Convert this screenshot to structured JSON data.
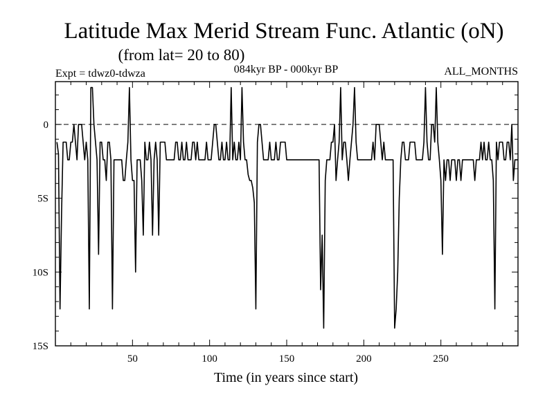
{
  "chart_data": {
    "type": "line",
    "title": "Latitude Max Merid Stream Func. Atlantic (oN)",
    "subtitle": "(from lat= 20 to 80)",
    "header_left": "Expt = tdwz0-tdwza",
    "header_center": "084kyr BP - 000kyr BP",
    "header_right": "ALL_MONTHS",
    "xlabel": "Time (in years since start)",
    "ylabel": "",
    "xlim": [
      0,
      300
    ],
    "ylim": [
      -15,
      2.9
    ],
    "x_ticks": [
      50,
      100,
      150,
      200,
      250
    ],
    "x_tick_labels": [
      "50",
      "100",
      "150",
      "200",
      "250"
    ],
    "y_ticks": [
      0,
      -5,
      -10,
      -15
    ],
    "y_tick_labels": [
      "0",
      "5S",
      "10S",
      "15S"
    ],
    "zero_line": "dashed",
    "grid": false,
    "series": [
      {
        "values": [
          [
            1,
            -1.2
          ],
          [
            2,
            -2.0
          ],
          [
            3,
            -12.5
          ],
          [
            4,
            -6.0
          ],
          [
            5,
            -1.2
          ],
          [
            6,
            -1.2
          ],
          [
            7,
            -1.2
          ],
          [
            8,
            -2.4
          ],
          [
            9,
            -2.4
          ],
          [
            10,
            -1.2
          ],
          [
            11,
            -1.2
          ],
          [
            12,
            0.0
          ],
          [
            13,
            -1.2
          ],
          [
            14,
            -2.4
          ],
          [
            15,
            0.0
          ],
          [
            16,
            0.0
          ],
          [
            17,
            0.0
          ],
          [
            18,
            -1.2
          ],
          [
            19,
            -2.4
          ],
          [
            20,
            -1.2
          ],
          [
            21,
            -2.4
          ],
          [
            22,
            -12.5
          ],
          [
            23,
            2.5
          ],
          [
            24,
            2.5
          ],
          [
            25,
            0.0
          ],
          [
            26,
            -1.2
          ],
          [
            27,
            -2.4
          ],
          [
            28,
            -8.8
          ],
          [
            29,
            -1.2
          ],
          [
            30,
            -1.2
          ],
          [
            31,
            -2.4
          ],
          [
            32,
            -2.4
          ],
          [
            33,
            -3.8
          ],
          [
            34,
            -1.2
          ],
          [
            35,
            -1.2
          ],
          [
            36,
            -2.4
          ],
          [
            37,
            -12.5
          ],
          [
            38,
            -2.4
          ],
          [
            39,
            -2.4
          ],
          [
            40,
            -2.4
          ],
          [
            41,
            -2.4
          ],
          [
            42,
            -2.4
          ],
          [
            43,
            -2.4
          ],
          [
            44,
            -3.8
          ],
          [
            45,
            -3.8
          ],
          [
            46,
            -2.4
          ],
          [
            47,
            -1.2
          ],
          [
            48,
            2.5
          ],
          [
            49,
            -2.4
          ],
          [
            50,
            -3.8
          ],
          [
            51,
            -3.8
          ],
          [
            52,
            -10.0
          ],
          [
            53,
            -2.4
          ],
          [
            54,
            -2.4
          ],
          [
            55,
            -2.4
          ],
          [
            56,
            -3.8
          ],
          [
            57,
            -7.5
          ],
          [
            58,
            -1.2
          ],
          [
            59,
            -2.4
          ],
          [
            60,
            -2.4
          ],
          [
            61,
            -1.2
          ],
          [
            62,
            -2.4
          ],
          [
            63,
            -7.5
          ],
          [
            64,
            -2.4
          ],
          [
            65,
            -1.2
          ],
          [
            66,
            -2.4
          ],
          [
            67,
            -7.5
          ],
          [
            68,
            -1.2
          ],
          [
            69,
            -1.2
          ],
          [
            70,
            -1.2
          ],
          [
            71,
            -1.2
          ],
          [
            72,
            -2.4
          ],
          [
            73,
            -2.4
          ],
          [
            74,
            -2.4
          ],
          [
            75,
            -2.4
          ],
          [
            76,
            -2.4
          ],
          [
            77,
            -2.4
          ],
          [
            78,
            -1.2
          ],
          [
            79,
            -1.2
          ],
          [
            80,
            -2.4
          ],
          [
            81,
            -2.4
          ],
          [
            82,
            -1.2
          ],
          [
            83,
            -2.4
          ],
          [
            84,
            -2.4
          ],
          [
            85,
            -1.2
          ],
          [
            86,
            -2.4
          ],
          [
            87,
            -2.4
          ],
          [
            88,
            -2.4
          ],
          [
            89,
            -1.2
          ],
          [
            90,
            -1.2
          ],
          [
            91,
            -2.4
          ],
          [
            92,
            -1.2
          ],
          [
            93,
            -2.4
          ],
          [
            94,
            -2.4
          ],
          [
            95,
            -2.4
          ],
          [
            96,
            -2.4
          ],
          [
            97,
            -2.4
          ],
          [
            98,
            -1.2
          ],
          [
            99,
            -2.4
          ],
          [
            100,
            -2.4
          ],
          [
            101,
            -2.4
          ],
          [
            102,
            -1.2
          ],
          [
            103,
            0.0
          ],
          [
            104,
            0.0
          ],
          [
            105,
            -1.2
          ],
          [
            106,
            -2.4
          ],
          [
            107,
            -2.4
          ],
          [
            108,
            -1.2
          ],
          [
            109,
            -2.4
          ],
          [
            110,
            -2.4
          ],
          [
            111,
            -1.2
          ],
          [
            112,
            -2.4
          ],
          [
            113,
            -2.4
          ],
          [
            114,
            2.5
          ],
          [
            115,
            -2.4
          ],
          [
            116,
            -1.2
          ],
          [
            117,
            -2.4
          ],
          [
            118,
            -2.4
          ],
          [
            119,
            -1.2
          ],
          [
            120,
            -2.4
          ],
          [
            121,
            2.5
          ],
          [
            122,
            -1.2
          ],
          [
            123,
            -2.4
          ],
          [
            124,
            -2.4
          ],
          [
            125,
            -3.4
          ],
          [
            126,
            -3.8
          ],
          [
            127,
            -3.8
          ],
          [
            128,
            -4.3
          ],
          [
            129,
            -5.3
          ],
          [
            130,
            -12.5
          ],
          [
            131,
            -1.2
          ],
          [
            132,
            0.0
          ],
          [
            133,
            0.0
          ],
          [
            134,
            -1.2
          ],
          [
            135,
            -2.4
          ],
          [
            136,
            -2.4
          ],
          [
            137,
            -2.4
          ],
          [
            138,
            -2.4
          ],
          [
            139,
            -1.2
          ],
          [
            140,
            -2.4
          ],
          [
            141,
            -2.4
          ],
          [
            142,
            -2.4
          ],
          [
            143,
            -1.2
          ],
          [
            144,
            -2.4
          ],
          [
            145,
            -2.4
          ],
          [
            146,
            -1.2
          ],
          [
            147,
            -1.2
          ],
          [
            148,
            -1.2
          ],
          [
            149,
            -1.2
          ],
          [
            150,
            -2.4
          ],
          [
            151,
            -2.4
          ],
          [
            152,
            -2.4
          ],
          [
            153,
            -2.4
          ],
          [
            154,
            -2.4
          ],
          [
            155,
            -2.4
          ],
          [
            156,
            -2.4
          ],
          [
            157,
            -2.4
          ],
          [
            158,
            -2.4
          ],
          [
            159,
            -2.4
          ],
          [
            160,
            -2.4
          ],
          [
            161,
            -2.4
          ],
          [
            162,
            -2.4
          ],
          [
            163,
            -2.4
          ],
          [
            164,
            -2.4
          ],
          [
            165,
            -2.4
          ],
          [
            166,
            -2.4
          ],
          [
            167,
            -2.4
          ],
          [
            168,
            -2.4
          ],
          [
            169,
            -2.4
          ],
          [
            170,
            -2.4
          ],
          [
            171,
            -2.4
          ],
          [
            172,
            -11.2
          ],
          [
            173,
            -7.5
          ],
          [
            174,
            -13.8
          ],
          [
            175,
            -3.8
          ],
          [
            176,
            -2.4
          ],
          [
            177,
            -2.4
          ],
          [
            178,
            -2.4
          ],
          [
            179,
            -1.2
          ],
          [
            180,
            -1.2
          ],
          [
            181,
            0.0
          ],
          [
            182,
            -3.8
          ],
          [
            183,
            -2.4
          ],
          [
            184,
            -1.2
          ],
          [
            185,
            2.5
          ],
          [
            186,
            -2.4
          ],
          [
            187,
            -1.2
          ],
          [
            188,
            -1.2
          ],
          [
            189,
            -2.4
          ],
          [
            190,
            -3.8
          ],
          [
            191,
            -2.4
          ],
          [
            192,
            -1.2
          ],
          [
            193,
            0.0
          ],
          [
            194,
            2.5
          ],
          [
            195,
            -1.2
          ],
          [
            196,
            -2.4
          ],
          [
            197,
            -2.4
          ],
          [
            198,
            -2.4
          ],
          [
            199,
            -2.4
          ],
          [
            200,
            -2.4
          ],
          [
            201,
            -2.4
          ],
          [
            202,
            -2.4
          ],
          [
            203,
            -2.4
          ],
          [
            204,
            -2.4
          ],
          [
            205,
            -2.4
          ],
          [
            206,
            -1.2
          ],
          [
            207,
            -2.4
          ],
          [
            208,
            0.0
          ],
          [
            209,
            0.0
          ],
          [
            210,
            0.0
          ],
          [
            211,
            -1.2
          ],
          [
            212,
            -2.4
          ],
          [
            213,
            -1.2
          ],
          [
            214,
            -2.4
          ],
          [
            215,
            -2.4
          ],
          [
            216,
            -2.4
          ],
          [
            217,
            -2.4
          ],
          [
            218,
            -2.4
          ],
          [
            219,
            -2.4
          ],
          [
            220,
            -13.8
          ],
          [
            221,
            -12.5
          ],
          [
            222,
            -10.0
          ],
          [
            223,
            -5.0
          ],
          [
            224,
            -2.4
          ],
          [
            225,
            -1.2
          ],
          [
            226,
            -1.2
          ],
          [
            227,
            -2.4
          ],
          [
            228,
            -2.4
          ],
          [
            229,
            -2.4
          ],
          [
            230,
            -1.2
          ],
          [
            231,
            -1.2
          ],
          [
            232,
            -1.2
          ],
          [
            233,
            -1.2
          ],
          [
            234,
            -2.4
          ],
          [
            235,
            -2.4
          ],
          [
            236,
            -2.4
          ],
          [
            237,
            -2.4
          ],
          [
            238,
            -2.4
          ],
          [
            239,
            -1.2
          ],
          [
            240,
            2.5
          ],
          [
            241,
            -1.2
          ],
          [
            242,
            -2.4
          ],
          [
            243,
            -2.4
          ],
          [
            244,
            0.0
          ],
          [
            245,
            0.0
          ],
          [
            246,
            -1.2
          ],
          [
            247,
            2.5
          ],
          [
            248,
            -1.2
          ],
          [
            249,
            -2.4
          ],
          [
            250,
            -3.8
          ],
          [
            251,
            -8.8
          ],
          [
            252,
            -2.4
          ],
          [
            253,
            -3.8
          ],
          [
            254,
            -2.4
          ],
          [
            255,
            -2.4
          ],
          [
            256,
            -3.8
          ],
          [
            257,
            -2.4
          ],
          [
            258,
            -2.4
          ],
          [
            259,
            -2.4
          ],
          [
            260,
            -3.8
          ],
          [
            261,
            -2.4
          ],
          [
            262,
            -2.4
          ],
          [
            263,
            -3.8
          ],
          [
            264,
            -2.4
          ],
          [
            265,
            -2.4
          ],
          [
            266,
            -2.4
          ],
          [
            267,
            -2.4
          ],
          [
            268,
            -2.4
          ],
          [
            269,
            -2.4
          ],
          [
            270,
            -2.4
          ],
          [
            271,
            -2.4
          ],
          [
            272,
            -3.8
          ],
          [
            273,
            -2.4
          ],
          [
            274,
            -2.4
          ],
          [
            275,
            -2.4
          ],
          [
            276,
            -1.2
          ],
          [
            277,
            -2.4
          ],
          [
            278,
            -1.2
          ],
          [
            279,
            -2.4
          ],
          [
            280,
            -2.4
          ],
          [
            281,
            -1.2
          ],
          [
            282,
            -2.4
          ],
          [
            283,
            -2.4
          ],
          [
            284,
            -3.8
          ],
          [
            285,
            -12.5
          ],
          [
            286,
            -1.2
          ],
          [
            287,
            -2.4
          ],
          [
            288,
            -1.2
          ],
          [
            289,
            -1.2
          ],
          [
            290,
            -1.2
          ],
          [
            291,
            -2.4
          ],
          [
            292,
            -2.4
          ],
          [
            293,
            -1.2
          ],
          [
            294,
            -1.2
          ],
          [
            295,
            -2.4
          ],
          [
            296,
            0.0
          ],
          [
            297,
            -3.8
          ],
          [
            298,
            -2.4
          ],
          [
            299,
            -2.4
          ],
          [
            300,
            -2.4
          ]
        ]
      }
    ]
  }
}
